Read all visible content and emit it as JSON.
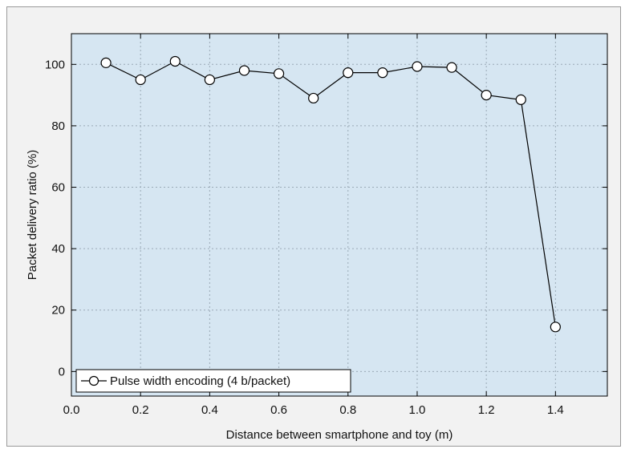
{
  "chart_data": {
    "type": "line",
    "xlabel": "Distance between smartphone and toy (m)",
    "ylabel": "Packet delivery ratio (%)",
    "xlim": [
      0.0,
      1.55
    ],
    "ylim": [
      -8,
      110
    ],
    "xticks": [
      0.0,
      0.2,
      0.4,
      0.6,
      0.8,
      1.0,
      1.2,
      1.4
    ],
    "xtick_labels": [
      "0.0",
      "0.2",
      "0.4",
      "0.6",
      "0.8",
      "1.0",
      "1.2",
      "1.4"
    ],
    "yticks": [
      0,
      20,
      40,
      60,
      80,
      100
    ],
    "ytick_labels": [
      "0",
      "20",
      "40",
      "60",
      "80",
      "100"
    ],
    "grid": true,
    "legend_position": "bottom-left",
    "series": [
      {
        "name": "Pulse width encoding (4 b/packet)",
        "x": [
          0.1,
          0.2,
          0.3,
          0.4,
          0.5,
          0.6,
          0.7,
          0.8,
          0.9,
          1.0,
          1.1,
          1.2,
          1.3,
          1.4
        ],
        "y": [
          100.5,
          95,
          101,
          95,
          98,
          97,
          89,
          97.3,
          97.3,
          99.3,
          99,
          90,
          88.5,
          14.5
        ]
      }
    ],
    "colors": {
      "plot_background": "#d6e6f2",
      "outer_background": "#f2f2f2",
      "line": "#000000",
      "marker_fill": "#ffffff",
      "grid": "#9aa9b6"
    }
  }
}
